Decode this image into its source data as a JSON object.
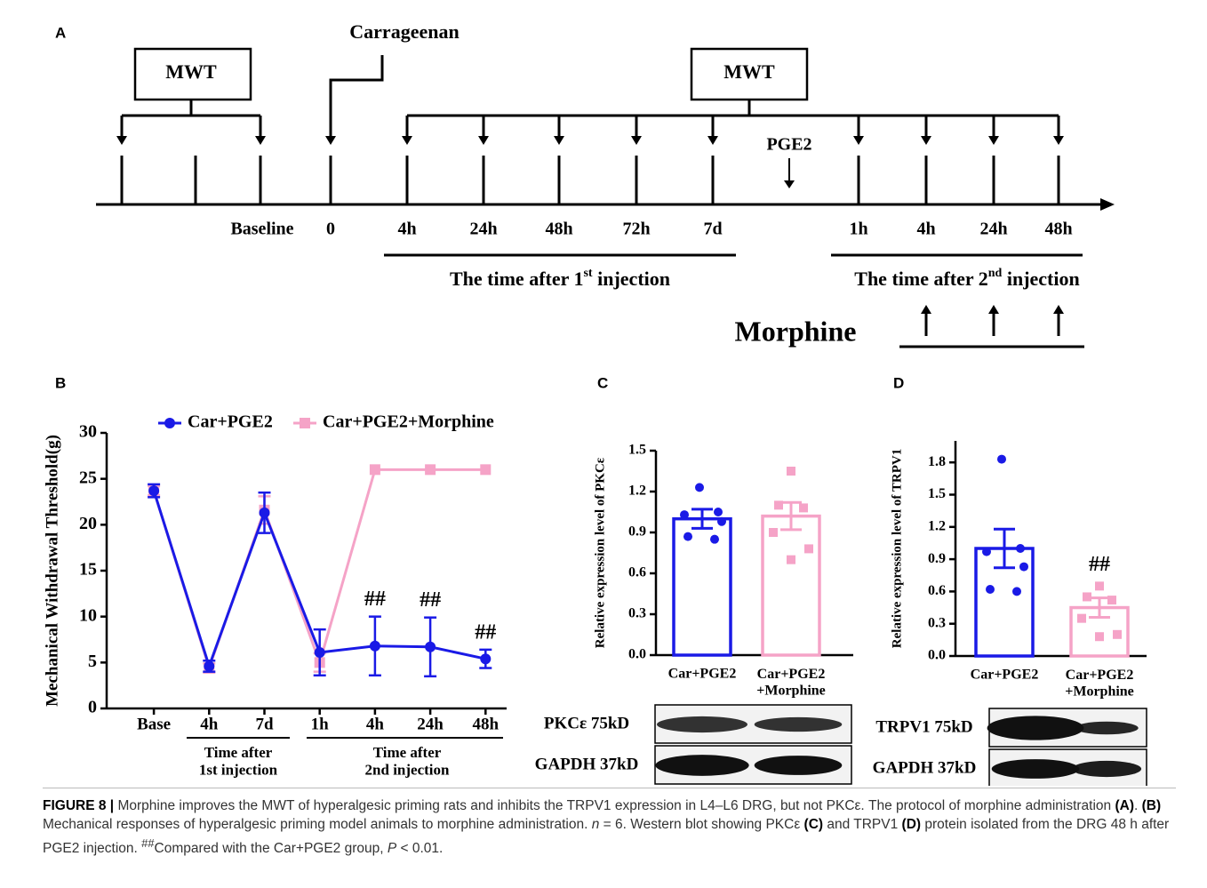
{
  "panel_labels": [
    "A",
    "B",
    "C",
    "D"
  ],
  "protocol": {
    "boxes": [
      "MWT",
      "MWT"
    ],
    "stimulus": "Carrageenan",
    "second_stimulus": "PGE2",
    "timepoints": [
      "Baseline",
      "0",
      "4h",
      "24h",
      "48h",
      "72h",
      "7d",
      "1h",
      "4h",
      "24h",
      "48h"
    ],
    "period_1": {
      "text": "The time after 1",
      "sup": "st",
      "tail": " injection"
    },
    "period_2": {
      "text": "The time after 2",
      "sup": "nd",
      "tail": " injection"
    },
    "treatment": "Morphine"
  },
  "chart_data": [
    {
      "type": "line",
      "y_label": "Mechanical Withdrawal Threshold(g)",
      "categories": [
        "Base",
        "4h",
        "7d",
        "1h",
        "4h",
        "24h",
        "48h"
      ],
      "x_groups": [
        "Time after\n1st injection",
        "Time after\n2nd injection"
      ],
      "ylim": [
        0,
        30
      ],
      "yticks": [
        0,
        5,
        10,
        15,
        20,
        25,
        30
      ],
      "series": [
        {
          "name": "Car+PGE2",
          "color": "#1a1ae6",
          "marker": "circle",
          "values": [
            23.7,
            4.6,
            21.3,
            6.1,
            6.8,
            6.7,
            5.4
          ],
          "errors": [
            0.7,
            0.6,
            2.2,
            2.5,
            3.2,
            3.2,
            1.0
          ]
        },
        {
          "name": "Car+PGE2+Morphine",
          "color": "#f5a3c7",
          "marker": "square",
          "values": [
            23.7,
            4.4,
            21.6,
            5.0,
            26,
            26,
            26
          ],
          "errors": [
            0.5,
            0.5,
            1.5,
            1.0,
            0,
            0,
            0
          ]
        }
      ],
      "annotations": [
        null,
        null,
        null,
        null,
        "##",
        "##",
        "##"
      ]
    },
    {
      "type": "bar",
      "y_label": "Relative expression level of PKCε",
      "categories": [
        "Car+PGE2",
        "Car+PGE2\n+Morphine"
      ],
      "colors": [
        "#1a1ae6",
        "#f5a3c7"
      ],
      "values": [
        1.0,
        1.02
      ],
      "errors": [
        0.07,
        0.1
      ],
      "points": [
        [
          1.23,
          1.05,
          1.03,
          0.98,
          0.87,
          0.85
        ],
        [
          1.35,
          1.1,
          1.08,
          0.9,
          0.78,
          0.7
        ]
      ],
      "ylim": [
        0,
        1.5
      ],
      "yticks": [
        {
          "value": 0,
          "label": "0.0"
        },
        0.3,
        0.6,
        0.9,
        1.2,
        1.5
      ],
      "annotations": [
        null,
        null
      ]
    },
    {
      "type": "bar",
      "y_label": "Relative expression level of TRPV1",
      "categories": [
        "Car+PGE2",
        "Car+PGE2\n+Morphine"
      ],
      "colors": [
        "#1a1ae6",
        "#f5a3c7"
      ],
      "values": [
        1.0,
        0.45
      ],
      "errors": [
        0.18,
        0.09
      ],
      "points": [
        [
          1.83,
          1.0,
          0.97,
          0.83,
          0.62,
          0.6
        ],
        [
          0.65,
          0.55,
          0.52,
          0.35,
          0.2,
          0.18
        ]
      ],
      "ylim": [
        0,
        2.0
      ],
      "yticks": [
        {
          "value": 0,
          "label": "0.0"
        },
        0.3,
        0.6,
        0.9,
        1.2,
        1.5,
        1.8
      ],
      "annotations": [
        null,
        "##"
      ]
    }
  ],
  "blots": [
    {
      "rows": [
        "PKCε 75kD",
        "GAPDH 37kD"
      ]
    },
    {
      "rows": [
        "TRPV1 75kD",
        "GAPDH 37kD"
      ]
    }
  ],
  "caption": [
    {
      "text": "FIGURE 8 |",
      "style": "bold"
    },
    {
      "text": " Morphine improves the MWT of hyperalgesic priming rats and inhibits the TRPV1 expression in L4–L6 DRG, but not PKCε. The protocol of morphine administration ",
      "style": "normal"
    },
    {
      "text": "(A)",
      "style": "bold"
    },
    {
      "text": ". ",
      "style": "normal"
    },
    {
      "text": "(B)",
      "style": "bold"
    },
    {
      "text": " Mechanical responses of hyperalgesic priming model animals to morphine administration. ",
      "style": "normal"
    },
    {
      "text": "n",
      "style": "italic"
    },
    {
      "text": " = 6. Western blot showing PKCε ",
      "style": "normal"
    },
    {
      "text": "(C)",
      "style": "bold"
    },
    {
      "text": " and TRPV1 ",
      "style": "normal"
    },
    {
      "text": "(D)",
      "style": "bold"
    },
    {
      "text": " protein isolated from the DRG 48 h after PGE2 injection. ",
      "style": "normal"
    },
    {
      "text": "##",
      "style": "sup"
    },
    {
      "text": "Compared with the Car+PGE2 group, ",
      "style": "normal"
    },
    {
      "text": "P",
      "style": "italic"
    },
    {
      "text": " < 0.01.",
      "style": "normal"
    }
  ]
}
